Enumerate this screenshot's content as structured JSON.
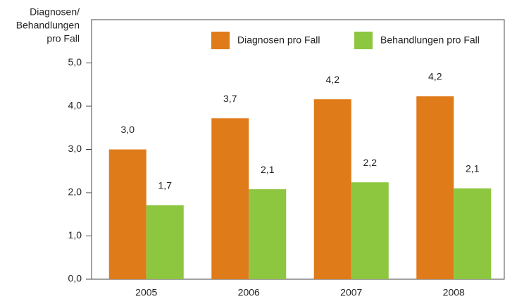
{
  "chart_data": {
    "type": "bar",
    "ylabel": [
      "Diagnosen/",
      "Behandlungen",
      "pro Fall"
    ],
    "categories": [
      "2005",
      "2006",
      "2007",
      "2008"
    ],
    "series": [
      {
        "name": "Diagnosen pro Fall",
        "color": "#e07b1a",
        "values": [
          3.0,
          3.72,
          4.16,
          4.23
        ],
        "value_labels": [
          "3,0",
          "3,7",
          "4,2",
          "4,2"
        ]
      },
      {
        "name": "Behandlungen pro Fall",
        "color": "#8dc63f",
        "values": [
          1.71,
          2.08,
          2.24,
          2.1
        ],
        "value_labels": [
          "1,7",
          "2,1",
          "2,2",
          "2,1"
        ]
      }
    ],
    "ylim": [
      0,
      6
    ],
    "yticks": [
      {
        "value": 0,
        "label": "0,0"
      },
      {
        "value": 1,
        "label": "1,0"
      },
      {
        "value": 2,
        "label": "2,0"
      },
      {
        "value": 3,
        "label": "3,0"
      },
      {
        "value": 4,
        "label": "4,0"
      },
      {
        "value": 5,
        "label": "5,0"
      }
    ],
    "grid": false,
    "legend": "top-right"
  }
}
